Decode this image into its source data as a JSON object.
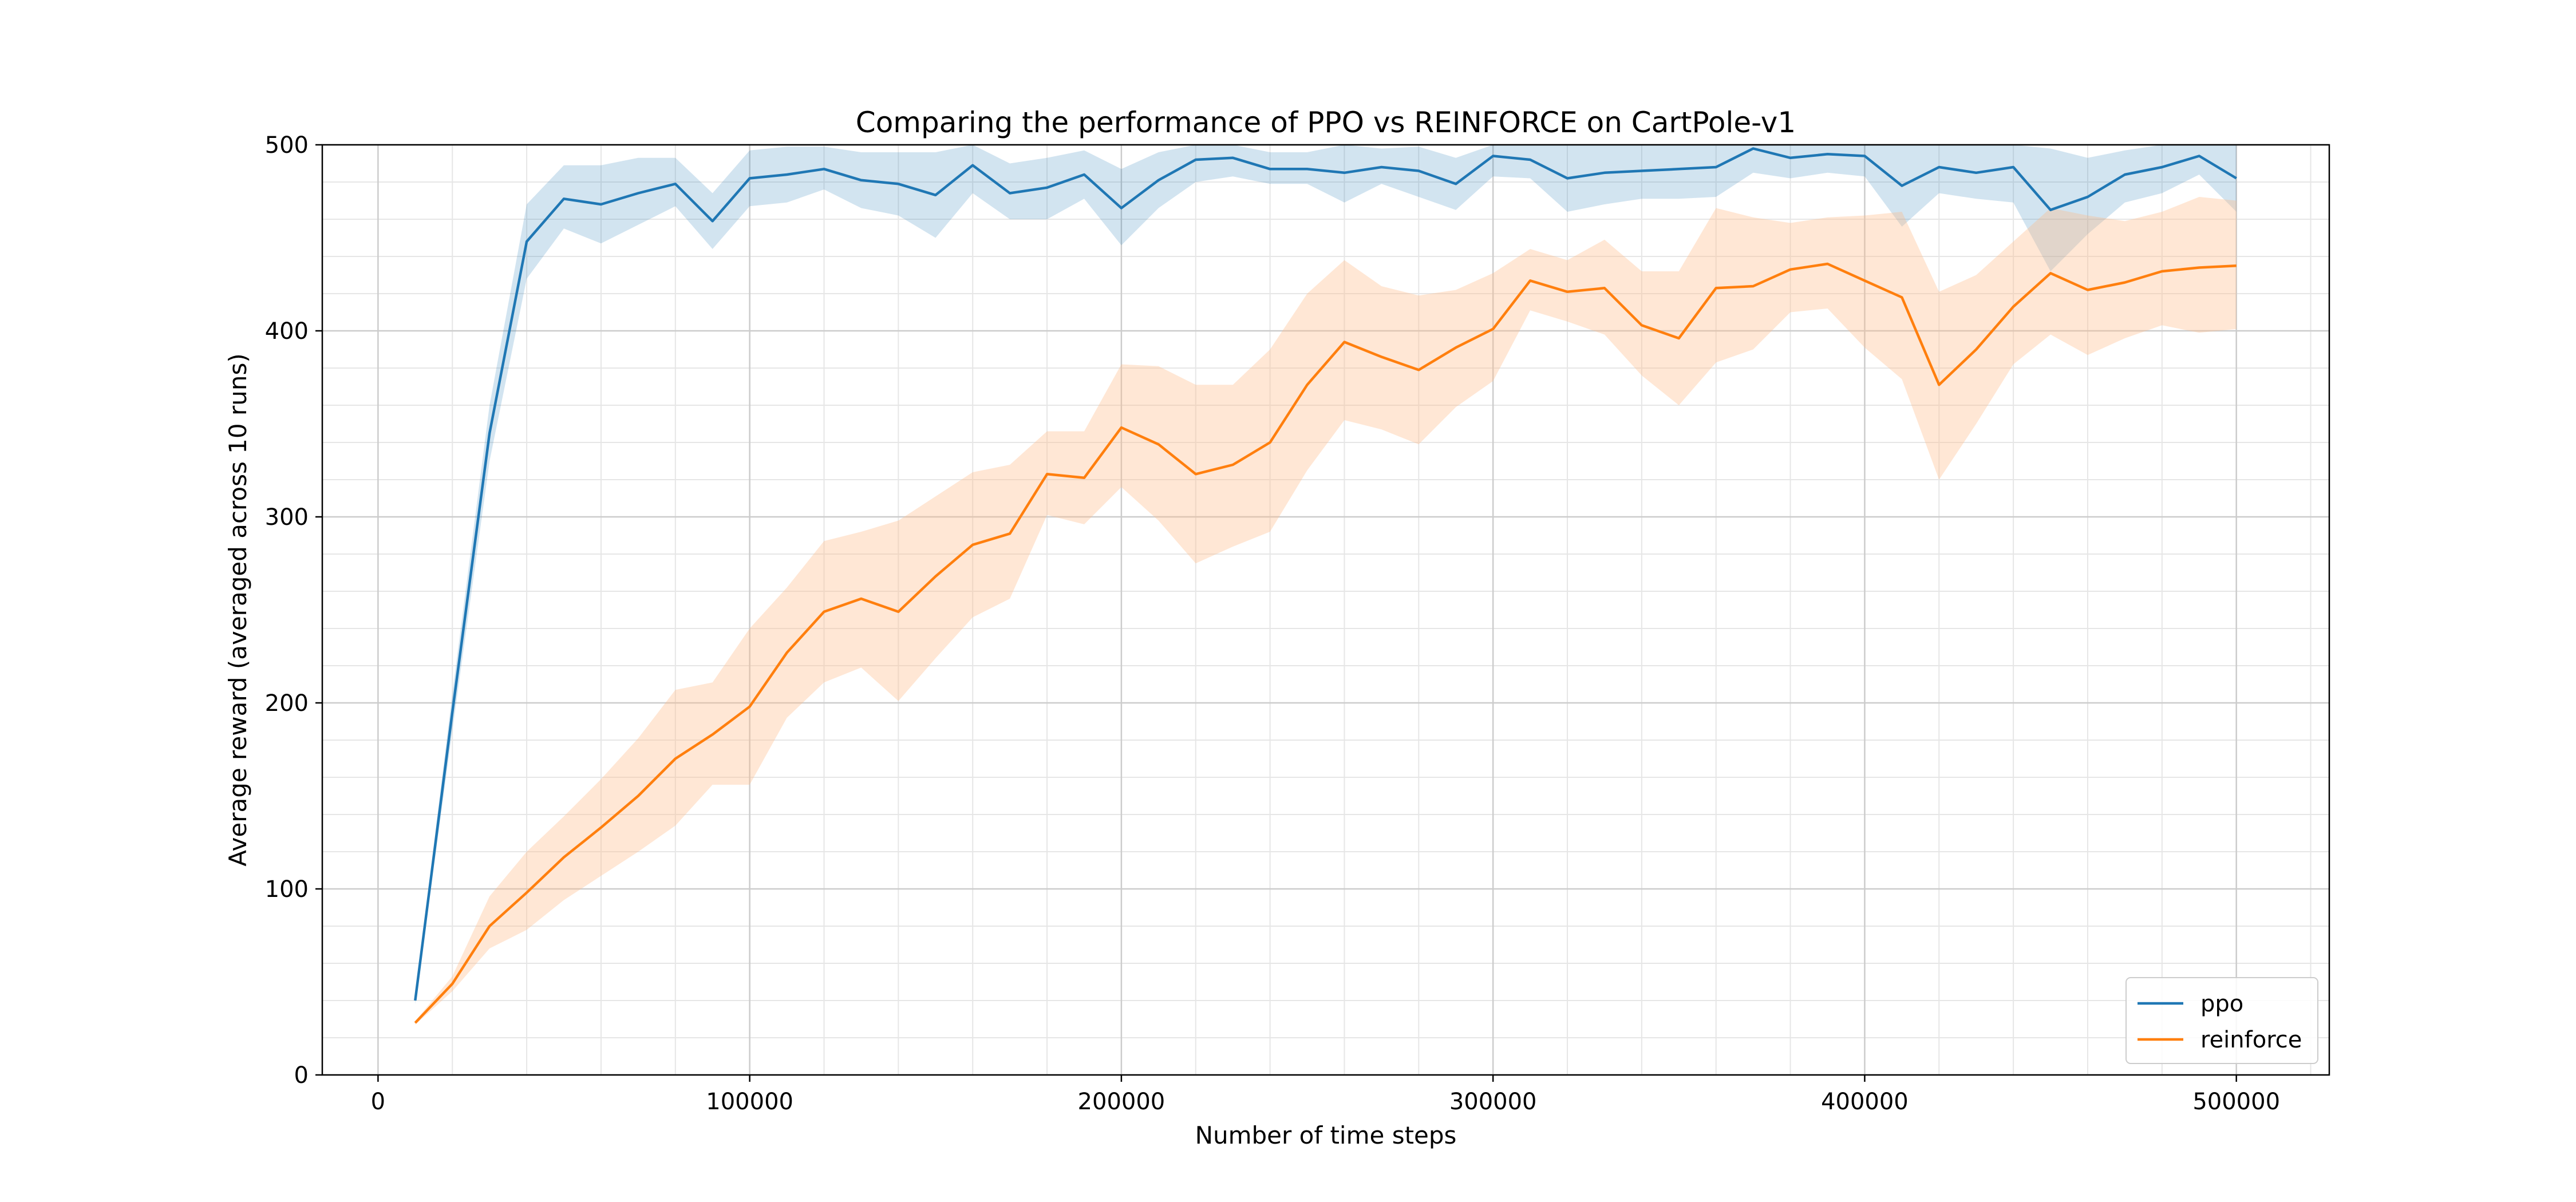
{
  "chart_data": {
    "type": "line",
    "title": "Comparing the performance of PPO vs REINFORCE on CartPole-v1",
    "xlabel": "Number of time steps",
    "ylabel": "Average reward (averaged across 10 runs)",
    "xlim": [
      -15000,
      525000
    ],
    "ylim": [
      0,
      500
    ],
    "xticks": [
      0,
      100000,
      200000,
      300000,
      400000,
      500000
    ],
    "xtick_labels": [
      "0",
      "100000",
      "200000",
      "300000",
      "400000",
      "500000"
    ],
    "yticks": [
      0,
      100,
      200,
      300,
      400,
      500
    ],
    "ytick_labels": [
      "0",
      "100",
      "200",
      "300",
      "400",
      "500"
    ],
    "grid": true,
    "minor_grid": true,
    "legend_position": "lower-right",
    "x": [
      10000,
      20000,
      30000,
      40000,
      50000,
      60000,
      70000,
      80000,
      90000,
      100000,
      110000,
      120000,
      130000,
      140000,
      150000,
      160000,
      170000,
      180000,
      190000,
      200000,
      210000,
      220000,
      230000,
      240000,
      250000,
      260000,
      270000,
      280000,
      290000,
      300000,
      310000,
      320000,
      330000,
      340000,
      350000,
      360000,
      370000,
      380000,
      390000,
      400000,
      410000,
      420000,
      430000,
      440000,
      450000,
      460000,
      470000,
      480000,
      490000,
      500000
    ],
    "series": [
      {
        "name": "ppo",
        "color": "#1f77b4",
        "band_color": "#1f77b4",
        "values": [
          40,
          195,
          345,
          448,
          471,
          468,
          474,
          479,
          459,
          482,
          484,
          487,
          481,
          479,
          473,
          489,
          474,
          477,
          484,
          466,
          481,
          492,
          493,
          487,
          487,
          485,
          488,
          486,
          479,
          494,
          492,
          482,
          485,
          486,
          487,
          488,
          498,
          493,
          495,
          494,
          478,
          488,
          485,
          488,
          465,
          472,
          484,
          488,
          494,
          482
        ],
        "lower": [
          38,
          185,
          330,
          428,
          455,
          447,
          457,
          467,
          444,
          467,
          469,
          476,
          466,
          462,
          450,
          474,
          460,
          460,
          471,
          446,
          466,
          480,
          483,
          479,
          479,
          469,
          479,
          472,
          465,
          483,
          482,
          464,
          468,
          471,
          471,
          472,
          485,
          482,
          485,
          483,
          456,
          474,
          471,
          469,
          432,
          452,
          469,
          474,
          484,
          464
        ],
        "upper": [
          42,
          205,
          360,
          468,
          489,
          489,
          493,
          493,
          474,
          497,
          499,
          499,
          496,
          496,
          496,
          500,
          490,
          493,
          497,
          487,
          496,
          500,
          500,
          496,
          496,
          500,
          498,
          499,
          493,
          500,
          500,
          500,
          500,
          500,
          500,
          500,
          500,
          500,
          500,
          500,
          500,
          500,
          500,
          500,
          498,
          493,
          497,
          500,
          500,
          500
        ]
      },
      {
        "name": "reinforce",
        "color": "#ff7f0e",
        "band_color": "#ffbb88",
        "values": [
          28,
          49,
          80,
          98,
          117,
          133,
          150,
          170,
          183,
          198,
          227,
          249,
          256,
          249,
          268,
          285,
          291,
          323,
          321,
          348,
          339,
          323,
          328,
          340,
          371,
          394,
          386,
          379,
          391,
          401,
          427,
          421,
          423,
          403,
          396,
          423,
          424,
          433,
          436,
          427,
          418,
          371,
          390,
          413,
          431,
          422,
          426,
          432,
          434,
          435
        ],
        "lower": [
          27,
          45,
          68,
          78,
          94,
          107,
          120,
          134,
          156,
          156,
          192,
          211,
          219,
          201,
          224,
          246,
          256,
          301,
          296,
          316,
          298,
          275,
          284,
          292,
          325,
          352,
          347,
          339,
          359,
          373,
          411,
          405,
          398,
          376,
          360,
          383,
          390,
          410,
          412,
          391,
          374,
          320,
          350,
          382,
          398,
          387,
          396,
          403,
          399,
          401
        ],
        "upper": [
          29,
          53,
          96,
          120,
          139,
          159,
          181,
          207,
          211,
          240,
          262,
          287,
          292,
          298,
          311,
          324,
          328,
          346,
          346,
          382,
          381,
          371,
          371,
          390,
          420,
          438,
          424,
          419,
          422,
          431,
          444,
          438,
          449,
          432,
          432,
          466,
          461,
          458,
          461,
          462,
          464,
          421,
          430,
          448,
          466,
          462,
          459,
          464,
          472,
          470
        ]
      }
    ]
  }
}
